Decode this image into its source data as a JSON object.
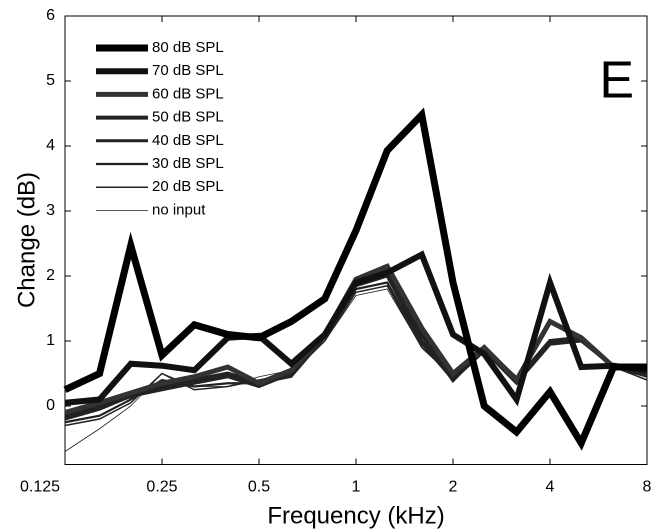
{
  "chart_data": {
    "type": "line",
    "annotation": "E",
    "x_label": "Frequency (kHz)",
    "y_label": "Change (dB)",
    "x_scale": "log",
    "x": [
      0.125,
      0.16,
      0.2,
      0.25,
      0.315,
      0.4,
      0.5,
      0.63,
      0.8,
      1,
      1.25,
      1.6,
      2,
      2.5,
      3.15,
      4,
      5,
      6.3,
      8
    ],
    "xlim": [
      0.125,
      8
    ],
    "xticks": [
      0.125,
      0.25,
      0.5,
      1,
      2,
      4,
      8
    ],
    "ylim": [
      -0.9,
      6
    ],
    "yticks": [
      0,
      1,
      2,
      3,
      4,
      5,
      6
    ],
    "legend": "upper left",
    "series": [
      {
        "name": "80 dB SPL",
        "color": "#000000",
        "values": [
          0.25,
          0.5,
          2.47,
          0.78,
          1.25,
          1.1,
          1.05,
          1.3,
          1.65,
          2.7,
          3.93,
          4.48,
          1.9,
          0.0,
          -0.4,
          0.22,
          -0.57,
          0.6,
          0.6
        ]
      },
      {
        "name": "70 dB SPL",
        "color": "#111111",
        "values": [
          0.05,
          0.1,
          0.65,
          0.62,
          0.55,
          1.05,
          1.08,
          0.65,
          1.1,
          1.9,
          2.05,
          2.33,
          1.1,
          0.8,
          0.1,
          1.9,
          0.6,
          0.62,
          0.55
        ]
      },
      {
        "name": "60 dB SPL",
        "color": "#333333",
        "values": [
          -0.1,
          0.05,
          0.2,
          0.35,
          0.45,
          0.6,
          0.35,
          0.55,
          1.1,
          1.95,
          2.15,
          1.2,
          0.5,
          0.9,
          0.4,
          1.3,
          1.05,
          0.6,
          0.55
        ]
      },
      {
        "name": "50 dB SPL",
        "color": "#222222",
        "values": [
          -0.15,
          0.0,
          0.15,
          0.3,
          0.4,
          0.5,
          0.35,
          0.5,
          1.1,
          1.9,
          2.1,
          1.1,
          0.4,
          0.9,
          0.4,
          1.0,
          1.05,
          0.6,
          0.5
        ]
      },
      {
        "name": "40 dB SPL",
        "color": "#222222",
        "values": [
          -0.2,
          -0.05,
          0.15,
          0.25,
          0.35,
          0.45,
          0.3,
          0.5,
          1.1,
          1.85,
          2.0,
          1.0,
          0.4,
          0.85,
          0.35,
          0.95,
          1.0,
          0.6,
          0.5
        ]
      },
      {
        "name": "30 dB SPL",
        "color": "#222222",
        "values": [
          -0.25,
          -0.15,
          0.1,
          0.4,
          0.3,
          0.35,
          0.35,
          0.45,
          1.05,
          1.8,
          1.9,
          0.95,
          0.4,
          0.9,
          0.4,
          1.0,
          1.0,
          0.6,
          0.45
        ]
      },
      {
        "name": "20 dB SPL",
        "color": "#222222",
        "values": [
          -0.3,
          -0.2,
          0.05,
          0.5,
          0.25,
          0.3,
          0.4,
          0.5,
          1.0,
          1.75,
          1.85,
          0.9,
          0.45,
          0.9,
          0.45,
          1.0,
          1.0,
          0.6,
          0.4
        ]
      },
      {
        "name": "no input",
        "color": "#222222",
        "values": [
          -0.7,
          -0.35,
          0.0,
          0.5,
          0.3,
          0.3,
          0.45,
          0.55,
          1.0,
          1.7,
          1.8,
          0.9,
          0.5,
          0.85,
          0.45,
          1.0,
          1.0,
          0.6,
          0.4
        ]
      }
    ]
  }
}
